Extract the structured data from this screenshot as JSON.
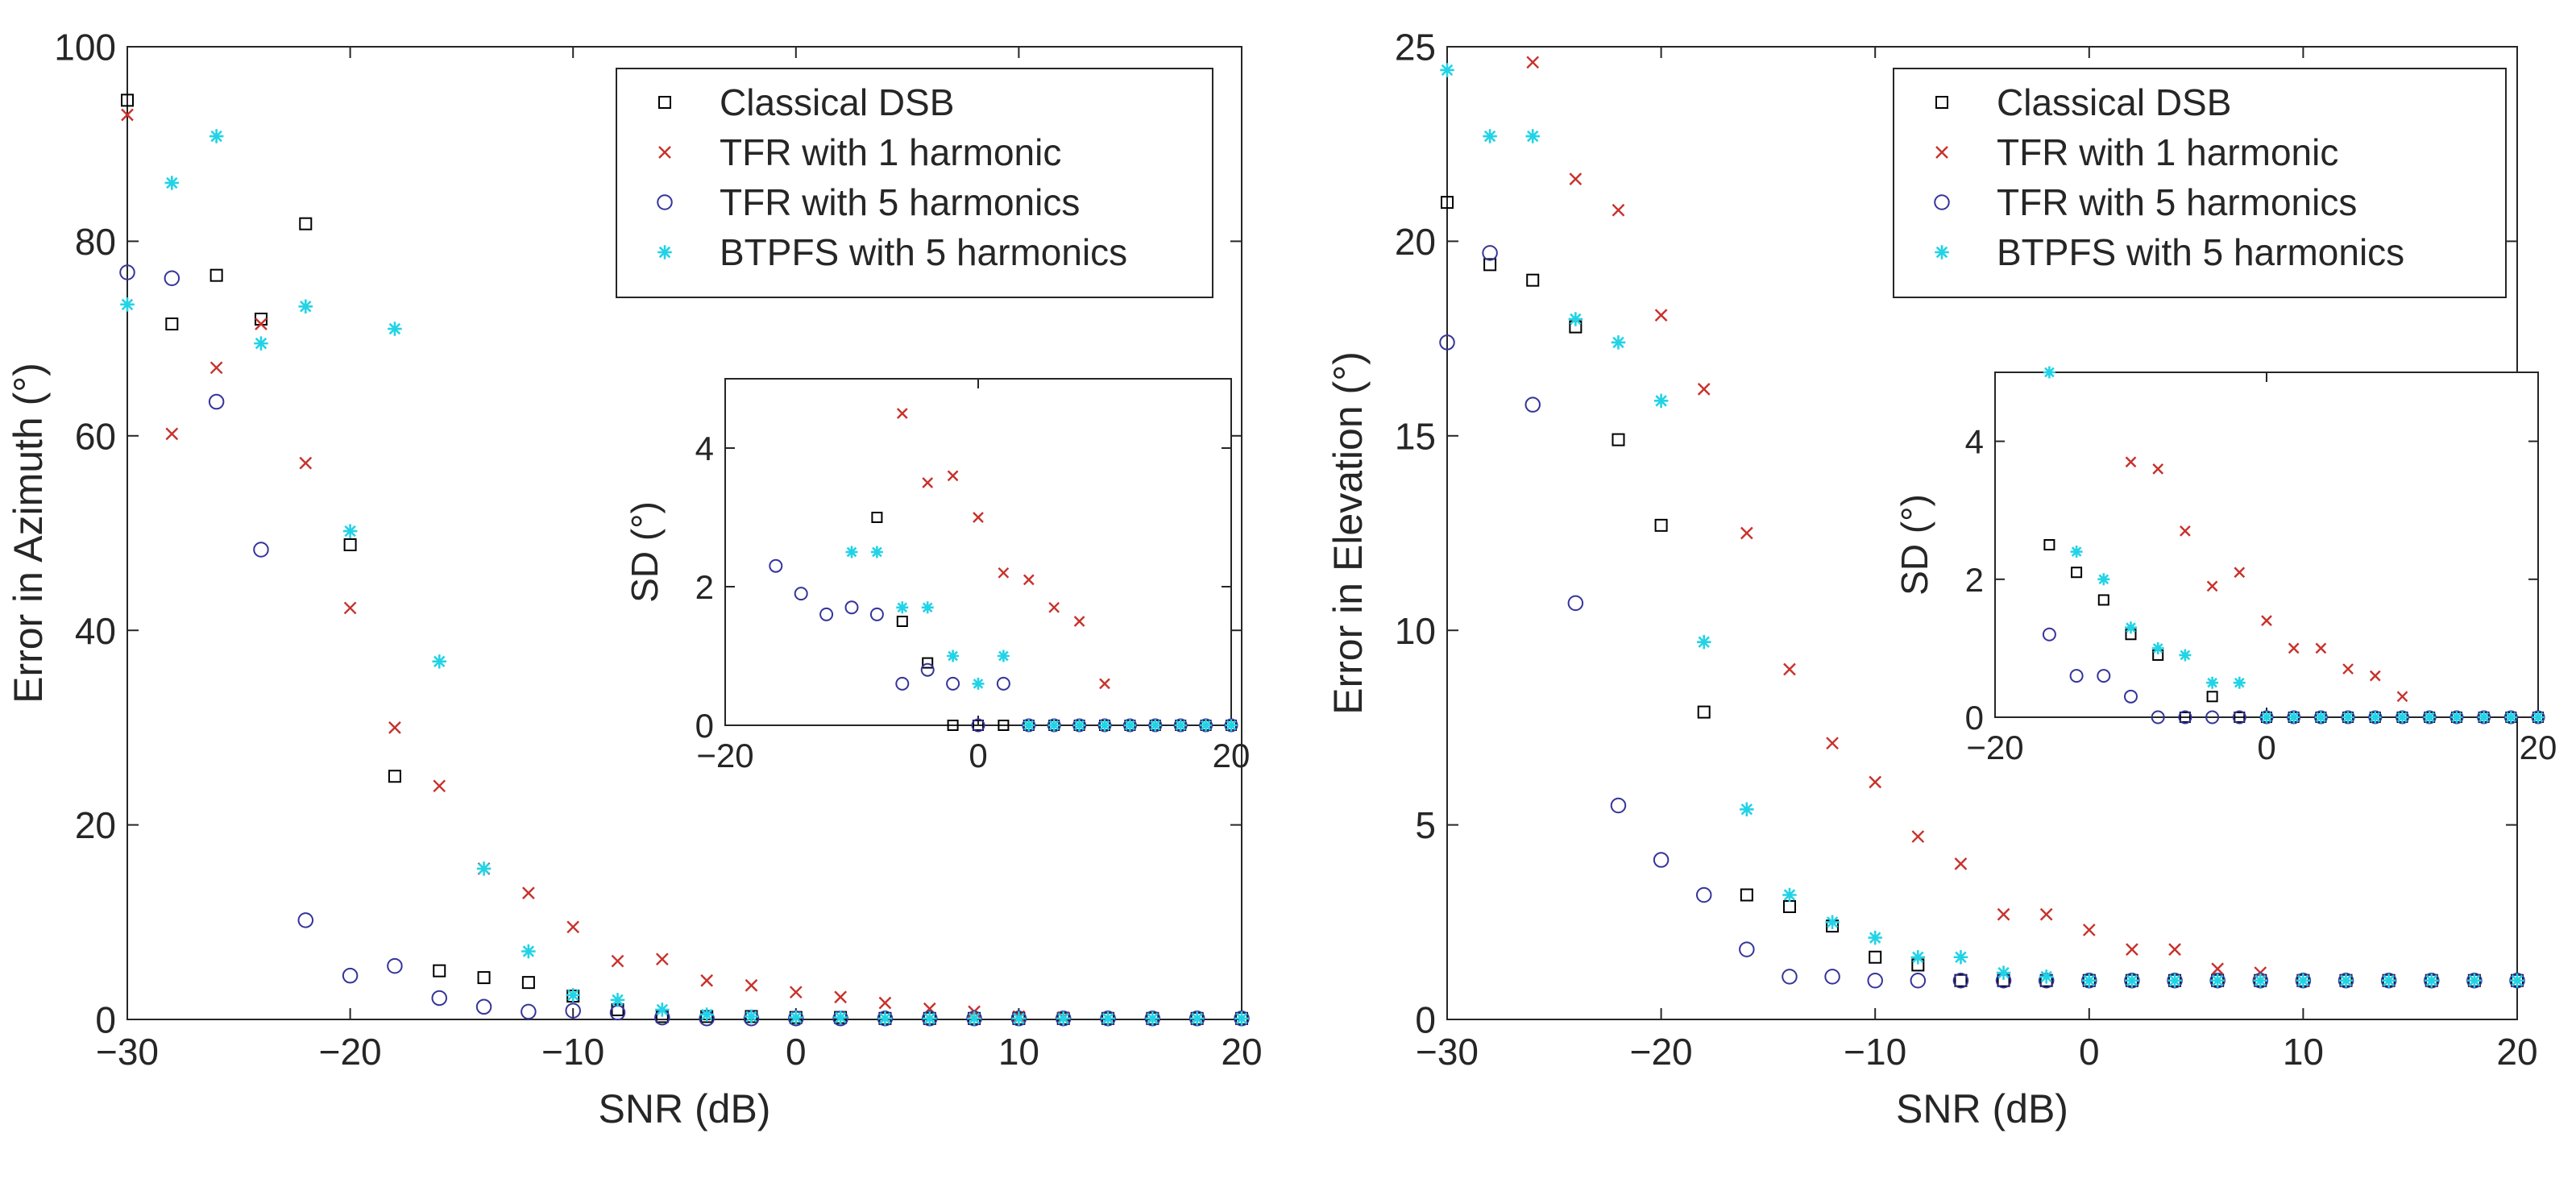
{
  "legend_entries": [
    "Classical DSB",
    "TFR with 1 harmonic",
    "TFR with 5 harmonics",
    "BTPFS with 5 harmonics"
  ],
  "chart_data": [
    {
      "type": "scatter",
      "panel": "left",
      "xlabel": "SNR (dB)",
      "ylabel": "Error in Azimuth (°)",
      "xlim": [
        -30,
        20
      ],
      "ylim": [
        0,
        100
      ],
      "xticks": [
        -30,
        -20,
        -10,
        0,
        10,
        20
      ],
      "yticks": [
        0,
        20,
        40,
        60,
        80,
        100
      ],
      "grid": false,
      "legend": "top-right",
      "x": [
        -30,
        -28,
        -26,
        -24,
        -22,
        -20,
        -18,
        -16,
        -14,
        -12,
        -10,
        -8,
        -6,
        -4,
        -2,
        0,
        2,
        4,
        6,
        8,
        10,
        12,
        14,
        16,
        18,
        20
      ],
      "series": [
        {
          "name": "Classical DSB",
          "color": "#000000",
          "marker": "square",
          "values": [
            94.5,
            71.5,
            76.5,
            72,
            81.8,
            48.8,
            25,
            5,
            4.3,
            3.8,
            2.4,
            1,
            0.3,
            0.3,
            0.3,
            0.2,
            0.2,
            0.1,
            0.1,
            0.1,
            0.1,
            0.1,
            0.1,
            0.1,
            0.1,
            0.1
          ]
        },
        {
          "name": "TFR with 1 harmonic",
          "color": "#c8312b",
          "marker": "x",
          "values": [
            93,
            60.2,
            67,
            71.5,
            57.2,
            42.3,
            30,
            24,
            15.5,
            13,
            9.5,
            6,
            6.2,
            4,
            3.5,
            2.8,
            2.3,
            1.7,
            1.1,
            0.8,
            0.3,
            0.2,
            0.1,
            0.1,
            0.1,
            0.1
          ]
        },
        {
          "name": "TFR with 5 harmonics",
          "color": "#35349a",
          "marker": "circle",
          "values": [
            76.8,
            76.2,
            63.5,
            48.3,
            10.2,
            4.5,
            5.5,
            2.2,
            1.3,
            0.8,
            0.9,
            0.7,
            0.2,
            0.1,
            0.1,
            0.1,
            0.1,
            0.1,
            0.1,
            0.1,
            0.1,
            0.1,
            0.1,
            0.1,
            0.1,
            0.1
          ]
        },
        {
          "name": "BTPFS with 5 harmonics",
          "color": "#22d3e6",
          "marker": "star",
          "values": [
            73.5,
            86,
            90.8,
            69.5,
            73.3,
            50.2,
            71,
            36.8,
            15.5,
            7,
            2.5,
            2,
            1,
            0.5,
            0.3,
            0.2,
            0.2,
            0.1,
            0.1,
            0.1,
            0.1,
            0.1,
            0.1,
            0.1,
            0.1,
            0.1
          ]
        }
      ],
      "inset": {
        "ylabel": "SD (°)",
        "xlim": [
          -20,
          20
        ],
        "ylim": [
          0,
          5
        ],
        "xticks": [
          -20,
          0,
          20
        ],
        "yticks": [
          0,
          2,
          4
        ],
        "x": [
          -16,
          -14,
          -12,
          -10,
          -8,
          -6,
          -4,
          -2,
          0,
          2,
          4,
          6,
          8,
          10,
          12,
          14,
          16,
          18,
          20
        ],
        "series": [
          {
            "name": "Classical DSB",
            "values": [
              null,
              null,
              null,
              null,
              3,
              1.5,
              0.9,
              0,
              0,
              0,
              0,
              0,
              0,
              0,
              0,
              0,
              0,
              0,
              0
            ]
          },
          {
            "name": "TFR with 1 harmonic",
            "values": [
              null,
              null,
              null,
              null,
              null,
              4.5,
              3.5,
              3.6,
              3,
              2.2,
              2.1,
              1.7,
              1.5,
              0.6,
              0,
              0,
              0,
              0,
              0
            ]
          },
          {
            "name": "TFR with 5 harmonics",
            "values": [
              2.3,
              1.9,
              1.6,
              1.7,
              1.6,
              0.6,
              0.8,
              0.6,
              0,
              0.6,
              0,
              0,
              0,
              0,
              0,
              0,
              0,
              0,
              0
            ]
          },
          {
            "name": "BTPFS with 5 harmonics",
            "values": [
              null,
              null,
              null,
              2.5,
              2.5,
              1.7,
              1.7,
              1,
              0.6,
              1,
              0,
              0,
              0,
              0,
              0,
              0,
              0,
              0,
              0
            ]
          }
        ]
      }
    },
    {
      "type": "scatter",
      "panel": "right",
      "xlabel": "SNR (dB)",
      "ylabel": "Error in Elevation (°)",
      "xlim": [
        -30,
        20
      ],
      "ylim": [
        0,
        25
      ],
      "xticks": [
        -30,
        -20,
        -10,
        0,
        10,
        20
      ],
      "yticks": [
        0,
        5,
        10,
        15,
        20,
        25
      ],
      "grid": false,
      "legend": "top-right",
      "x": [
        -30,
        -28,
        -26,
        -24,
        -22,
        -20,
        -18,
        -16,
        -14,
        -12,
        -10,
        -8,
        -6,
        -4,
        -2,
        0,
        2,
        4,
        6,
        8,
        10,
        12,
        14,
        16,
        18,
        20
      ],
      "series": [
        {
          "name": "Classical DSB",
          "color": "#000000",
          "marker": "square",
          "values": [
            21,
            19.4,
            19,
            17.8,
            14.9,
            12.7,
            7.9,
            3.2,
            2.9,
            2.4,
            1.6,
            1.4,
            1.0,
            1.0,
            1.0,
            1.0,
            1.0,
            1.0,
            1.0,
            1.0,
            1.0,
            1.0,
            1.0,
            1.0,
            1.0,
            1.0
          ]
        },
        {
          "name": "TFR with 1 harmonic",
          "color": "#c8312b",
          "marker": "x",
          "values": [
            null,
            null,
            24.6,
            21.6,
            20.8,
            18.1,
            16.2,
            12.5,
            9,
            7.1,
            6.1,
            4.7,
            4,
            2.7,
            2.7,
            2.3,
            1.8,
            1.8,
            1.3,
            1.2,
            1.0,
            1.0,
            1.0,
            1.0,
            1.0,
            1.0
          ]
        },
        {
          "name": "TFR with 5 harmonics",
          "color": "#35349a",
          "marker": "circle",
          "values": [
            17.4,
            19.7,
            15.8,
            10.7,
            5.5,
            4.1,
            3.2,
            1.8,
            1.1,
            1.1,
            1.0,
            1.0,
            1.0,
            1.0,
            1.0,
            1.0,
            1.0,
            1.0,
            1.0,
            1.0,
            1.0,
            1.0,
            1.0,
            1.0,
            1.0,
            1.0
          ]
        },
        {
          "name": "BTPFS with 5 harmonics",
          "color": "#22d3e6",
          "marker": "star",
          "values": [
            24.4,
            22.7,
            22.7,
            18,
            17.4,
            15.9,
            9.7,
            5.4,
            3.2,
            2.5,
            2.1,
            1.6,
            1.6,
            1.2,
            1.1,
            1.0,
            1.0,
            1.0,
            1.0,
            1.0,
            1.0,
            1.0,
            1.0,
            1.0,
            1.0,
            1.0
          ]
        }
      ],
      "inset": {
        "ylabel": "SD (°)",
        "xlim": [
          -20,
          20
        ],
        "ylim": [
          0,
          5
        ],
        "xticks": [
          -20,
          0,
          20
        ],
        "yticks": [
          0,
          2,
          4
        ],
        "x": [
          -16,
          -14,
          -12,
          -10,
          -8,
          -6,
          -4,
          -2,
          0,
          2,
          4,
          6,
          8,
          10,
          12,
          14,
          16,
          18,
          20
        ],
        "series": [
          {
            "name": "Classical DSB",
            "values": [
              2.5,
              2.1,
              1.7,
              1.2,
              0.9,
              0,
              0.3,
              0,
              0,
              0,
              0,
              0,
              0,
              0,
              0,
              0,
              0,
              0,
              0
            ]
          },
          {
            "name": "TFR with 1 harmonic",
            "values": [
              null,
              null,
              null,
              3.7,
              3.6,
              2.7,
              1.9,
              2.1,
              1.4,
              1,
              1,
              0.7,
              0.6,
              0.3,
              0,
              0,
              0,
              0,
              0
            ]
          },
          {
            "name": "TFR with 5 harmonics",
            "values": [
              1.2,
              0.6,
              0.6,
              0.3,
              0,
              0,
              0,
              0,
              0,
              0,
              0,
              0,
              0,
              0,
              0,
              0,
              0,
              0,
              0
            ]
          },
          {
            "name": "BTPFS with 5 harmonics",
            "values": [
              5,
              2.4,
              2,
              1.3,
              1,
              0.9,
              0.5,
              0.5,
              0,
              0,
              0,
              0,
              0,
              0,
              0,
              0,
              0,
              0,
              0
            ]
          }
        ]
      }
    }
  ]
}
